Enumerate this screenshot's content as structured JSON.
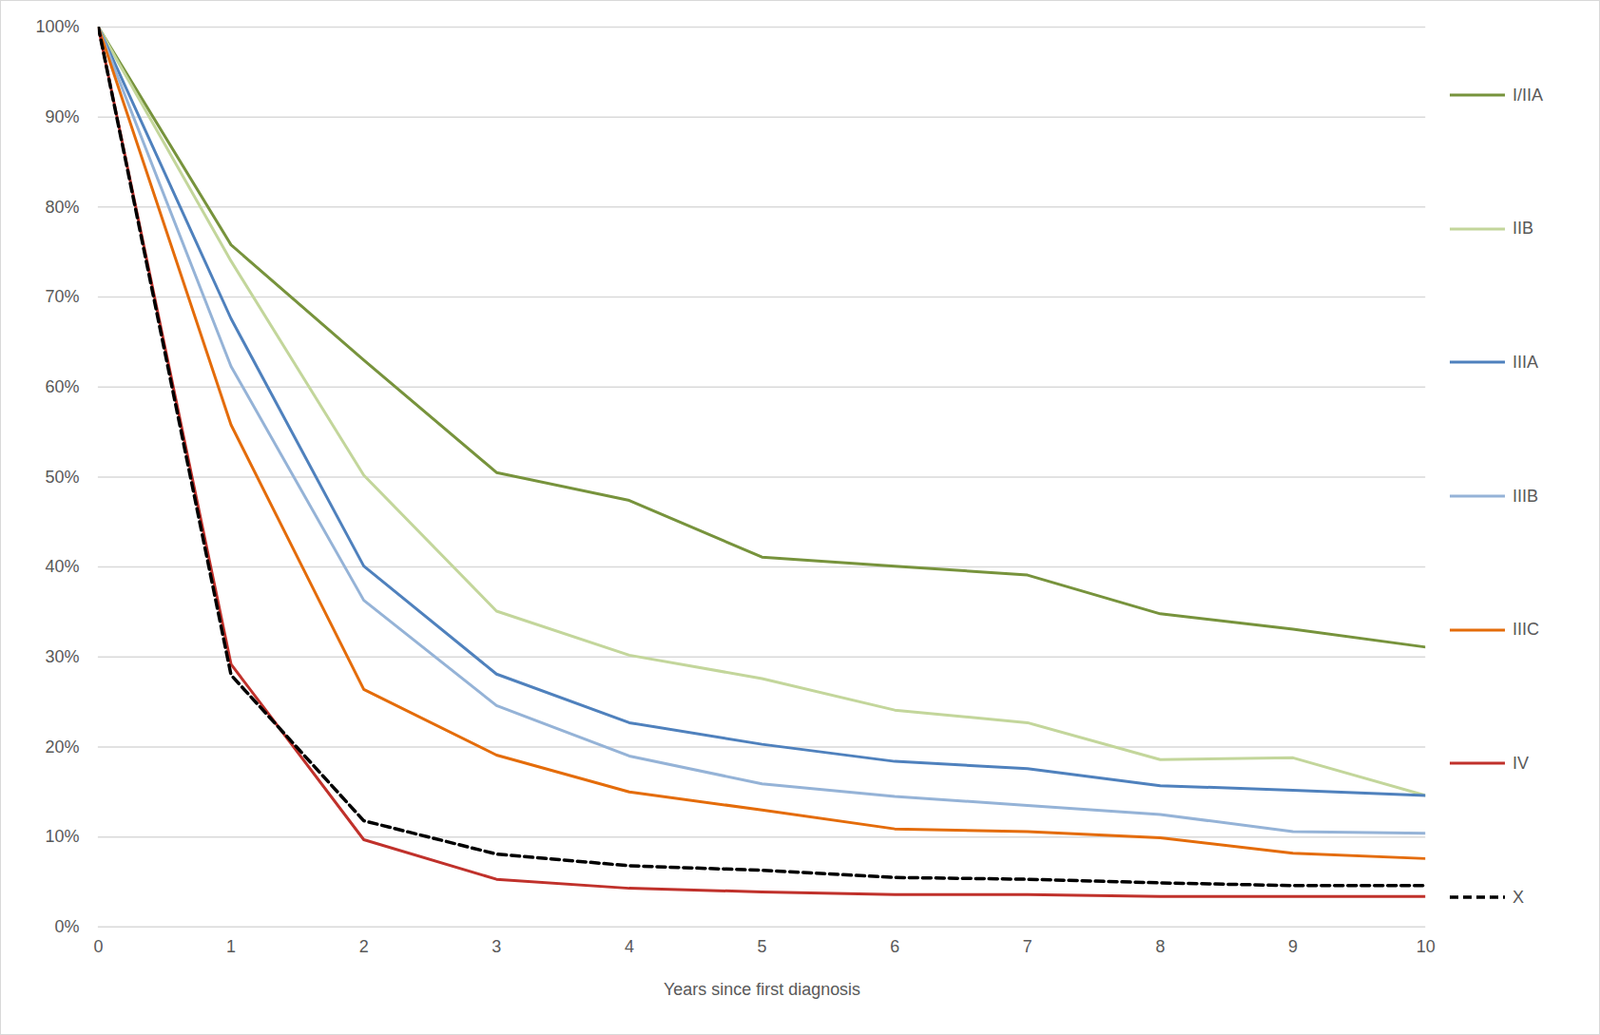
{
  "chart_data": {
    "type": "line",
    "x_label": "Years since first diagnosis",
    "x": [
      0,
      1,
      2,
      3,
      4,
      5,
      6,
      7,
      8,
      9,
      10
    ],
    "xlim": [
      0,
      10
    ],
    "xticks": [
      0,
      1,
      2,
      3,
      4,
      5,
      6,
      7,
      8,
      9,
      10
    ],
    "ylim": [
      0,
      100
    ],
    "yticks": [
      {
        "value": 0,
        "label": "0%"
      },
      {
        "value": 10,
        "label": "10%"
      },
      {
        "value": 20,
        "label": "20%"
      },
      {
        "value": 30,
        "label": "30%"
      },
      {
        "value": 40,
        "label": "40%"
      },
      {
        "value": 50,
        "label": "50%"
      },
      {
        "value": 60,
        "label": "60%"
      },
      {
        "value": 70,
        "label": "70%"
      },
      {
        "value": 80,
        "label": "80%"
      },
      {
        "value": 90,
        "label": "90%"
      },
      {
        "value": 100,
        "label": "100%"
      }
    ],
    "grid": true,
    "legend": "right",
    "series": [
      {
        "name": "I/IIA",
        "color": "#77933c",
        "line_style": "solid",
        "values": [
          100,
          75.8,
          63,
          50.5,
          47.4,
          41.1,
          40.1,
          39.1,
          34.8,
          33.1,
          31.1
        ]
      },
      {
        "name": "IIB",
        "color": "#c3d69b",
        "line_style": "solid",
        "values": [
          100,
          74,
          50.2,
          35.1,
          30.2,
          27.6,
          24.1,
          22.7,
          18.6,
          18.8,
          14.6
        ]
      },
      {
        "name": "IIIA",
        "color": "#4f81bd",
        "line_style": "solid",
        "values": [
          100,
          67.6,
          40.1,
          28.1,
          22.7,
          20.3,
          18.4,
          17.6,
          15.7,
          15.2,
          14.6
        ]
      },
      {
        "name": "IIIB",
        "color": "#95b3d7",
        "line_style": "solid",
        "values": [
          100,
          62.3,
          36.3,
          24.6,
          19.0,
          15.9,
          14.5,
          13.5,
          12.5,
          10.6,
          10.4
        ]
      },
      {
        "name": "IIIC",
        "color": "#e46c0a",
        "line_style": "solid",
        "values": [
          100,
          55.8,
          26.4,
          19.1,
          15.0,
          13.0,
          10.9,
          10.6,
          9.9,
          8.2,
          7.6
        ]
      },
      {
        "name": "IV",
        "color": "#c0312b",
        "line_style": "solid",
        "values": [
          100,
          29.2,
          9.7,
          5.3,
          4.3,
          3.9,
          3.6,
          3.6,
          3.4,
          3.4,
          3.4
        ]
      },
      {
        "name": "X",
        "color": "#000000",
        "line_style": "dashed",
        "values": [
          100,
          28,
          11.8,
          8.1,
          6.8,
          6.3,
          5.5,
          5.3,
          4.9,
          4.6,
          4.6
        ]
      }
    ]
  }
}
